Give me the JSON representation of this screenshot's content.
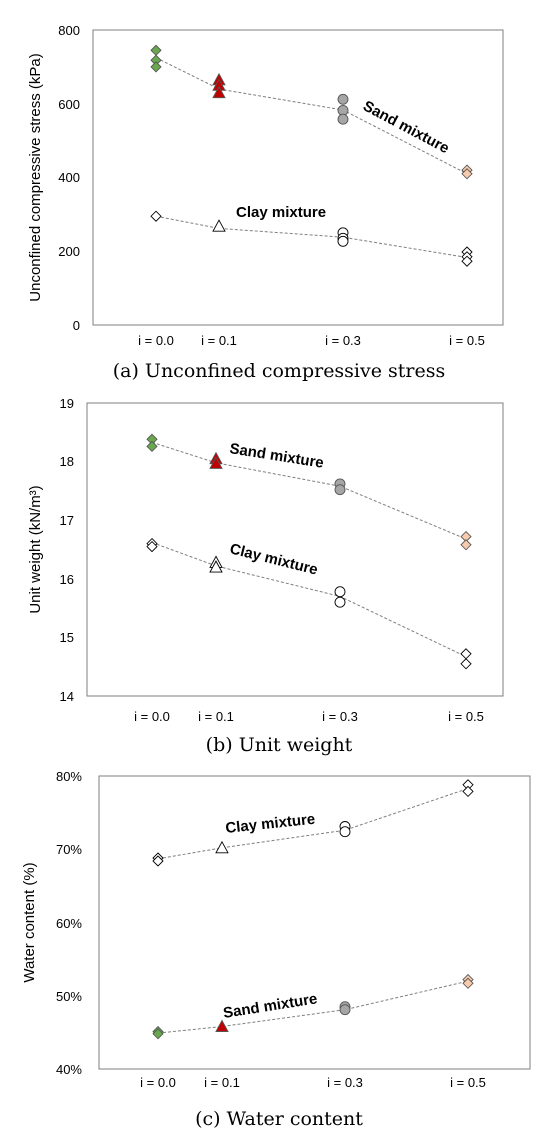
{
  "chart_data": [
    {
      "type": "scatter",
      "caption": "(a) Unconfined compressive stress",
      "ylabel": "Unconfined compressive stress (kPa)",
      "xlabel": "",
      "categories": [
        "i = 0.0",
        "i = 0.1",
        "i = 0.3",
        "i = 0.5"
      ],
      "ylim": [
        0,
        800
      ],
      "yticks": [
        0,
        200,
        400,
        600,
        800
      ],
      "ytick_labels": [
        "0",
        "200",
        "400",
        "600",
        "800"
      ],
      "grid": false,
      "series": [
        {
          "name": "Sand mixture",
          "points": [
            [
              0,
              745
            ],
            [
              0,
              718
            ],
            [
              0,
              700
            ],
            [
              1,
              665
            ],
            [
              1,
              650
            ],
            [
              1,
              630
            ],
            [
              2,
              612
            ],
            [
              2,
              582
            ],
            [
              2,
              558
            ],
            [
              3,
              420
            ],
            [
              3,
              410
            ]
          ],
          "trend": [
            725,
            640,
            583,
            410
          ],
          "markers": [
            "diamond",
            "triangle",
            "circle",
            "diamond"
          ],
          "fills": [
            "#6aa84f",
            "#c00000",
            "#a6a6a6",
            "#f8cbad"
          ]
        },
        {
          "name": "Clay mixture",
          "points": [
            [
              0,
              295
            ],
            [
              1,
              268
            ],
            [
              2,
              250
            ],
            [
              2,
              235
            ],
            [
              2,
              227
            ],
            [
              3,
              198
            ],
            [
              3,
              185
            ],
            [
              3,
              173
            ]
          ],
          "trend": [
            295,
            262,
            238,
            183
          ],
          "markers": [
            "diamond",
            "triangle",
            "circle",
            "diamond"
          ],
          "fills": [
            "#ffffff",
            "#ffffff",
            "#ffffff",
            "#ffffff"
          ]
        }
      ]
    },
    {
      "type": "scatter",
      "caption": "(b) Unit weight",
      "ylabel": "Unit weight (kN/m³)",
      "xlabel": "",
      "categories": [
        "i = 0.0",
        "i = 0.1",
        "i = 0.3",
        "i = 0.5"
      ],
      "ylim": [
        14,
        19
      ],
      "yticks": [
        14,
        15,
        16,
        17,
        18,
        19
      ],
      "ytick_labels": [
        "14",
        "15",
        "16",
        "17",
        "18",
        "19"
      ],
      "grid": false,
      "series": [
        {
          "name": "Sand mixture",
          "points": [
            [
              0,
              18.38
            ],
            [
              0,
              18.26
            ],
            [
              1,
              18.05
            ],
            [
              1,
              17.97
            ],
            [
              2,
              17.62
            ],
            [
              2,
              17.52
            ],
            [
              3,
              16.72
            ],
            [
              3,
              16.58
            ]
          ],
          "trend": [
            18.33,
            17.98,
            17.58,
            16.68
          ],
          "markers": [
            "diamond",
            "triangle",
            "circle",
            "diamond"
          ],
          "fills": [
            "#6aa84f",
            "#c00000",
            "#a6a6a6",
            "#f8cbad"
          ]
        },
        {
          "name": "Clay mixture",
          "points": [
            [
              0,
              16.6
            ],
            [
              0,
              16.55
            ],
            [
              1,
              16.28
            ],
            [
              1,
              16.2
            ],
            [
              2,
              15.78
            ],
            [
              2,
              15.6
            ],
            [
              3,
              14.72
            ],
            [
              3,
              14.55
            ]
          ],
          "trend": [
            16.62,
            16.22,
            15.7,
            14.67
          ],
          "markers": [
            "diamond",
            "triangle",
            "circle",
            "diamond"
          ],
          "fills": [
            "#ffffff",
            "#ffffff",
            "#ffffff",
            "#ffffff"
          ]
        }
      ]
    },
    {
      "type": "scatter",
      "caption": "(c) Water content",
      "ylabel": "Water content (%)",
      "xlabel": "",
      "categories": [
        "i = 0.0",
        "i = 0.1",
        "i = 0.3",
        "i = 0.5"
      ],
      "ylim": [
        40,
        80
      ],
      "yticks": [
        40,
        50,
        60,
        70,
        80
      ],
      "ytick_labels": [
        "40%",
        "50%",
        "60%",
        "70%",
        "80%"
      ],
      "grid": false,
      "series": [
        {
          "name": "Clay mixture",
          "points": [
            [
              0,
              68.8
            ],
            [
              0,
              68.4
            ],
            [
              1,
              70.2
            ],
            [
              2,
              73.1
            ],
            [
              2,
              72.4
            ],
            [
              3,
              78.8
            ],
            [
              3,
              77.9
            ]
          ],
          "trend": [
            68.7,
            70.2,
            72.6,
            78.3
          ],
          "markers": [
            "diamond",
            "triangle",
            "circle",
            "diamond"
          ],
          "fills": [
            "#ffffff",
            "#ffffff",
            "#ffffff",
            "#ffffff"
          ]
        },
        {
          "name": "Sand mixture",
          "points": [
            [
              0,
              45.1
            ],
            [
              0,
              44.8
            ],
            [
              1,
              45.8
            ],
            [
              2,
              48.5
            ],
            [
              2,
              48.1
            ],
            [
              3,
              52.2
            ],
            [
              3,
              51.7
            ]
          ],
          "trend": [
            44.9,
            45.8,
            48.1,
            52.0
          ],
          "markers": [
            "diamond",
            "triangle",
            "circle",
            "diamond"
          ],
          "fills": [
            "#6aa84f",
            "#c00000",
            "#a6a6a6",
            "#f8cbad"
          ]
        }
      ]
    }
  ]
}
